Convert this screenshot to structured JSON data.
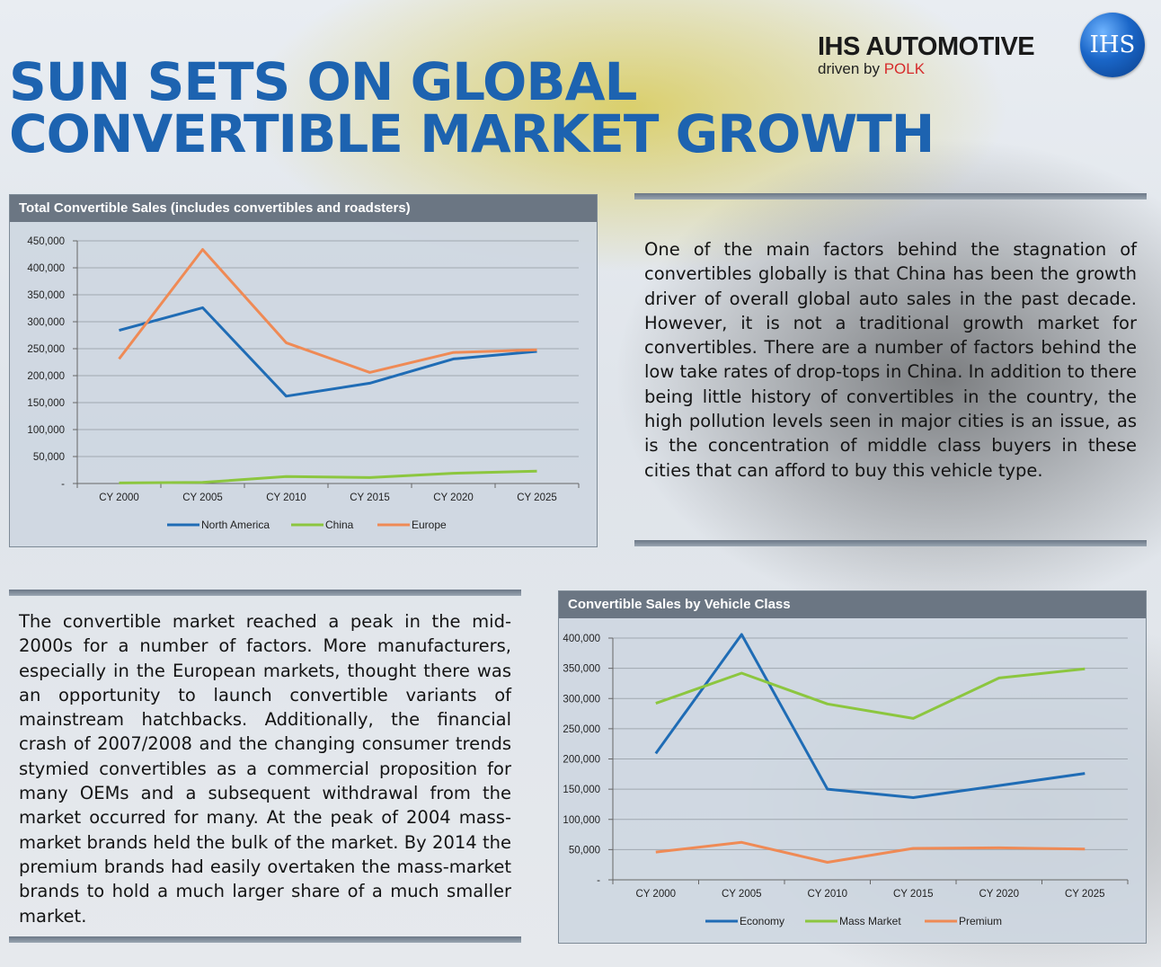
{
  "title": {
    "line1": "SUN SETS ON GLOBAL",
    "line2": "CONVERTIBLE MARKET GROWTH"
  },
  "brand": {
    "name": "IHS AUTOMOTIVE",
    "tagline": "driven by ",
    "tagline_accent": "POLK",
    "logo_text": "IHS"
  },
  "text": {
    "right_paragraph": "One of the main factors behind the stagnation of convertibles globally is that China has been the growth driver of overall global auto sales in the past decade. However, it is not a traditional growth market for convertibles. There are a number of factors behind the low take rates of drop-tops in China. In addition to there being little history of convertibles in the country, the high pollution levels seen in major cities is an issue, as is the concentration of middle class buyers in these cities that can afford to buy this vehicle type.",
    "left_paragraph": "The convertible market reached a peak in the mid-2000s for a number of factors. More manufacturers, especially in the European markets, thought there was an opportunity to launch convertible variants of mainstream hatchbacks. Additionally, the financial crash of 2007/2008 and the changing consumer trends stymied convertibles as a commercial proposition for many OEMs and a subsequent withdrawal from the market occurred for many. At the peak of 2004 mass-market brands held the bulk of the market. By 2014 the premium brands had easily overtaken the mass-market brands to hold a much larger share of a much smaller market."
  },
  "colors": {
    "title": "#1d63b0",
    "blue": "#1f6cb5",
    "green": "#8cc63f",
    "orange": "#ef8a55",
    "panel_header": "#6b7683"
  },
  "chart_data": [
    {
      "type": "line",
      "title": "Total Convertible Sales (includes convertibles and roadsters)",
      "categories": [
        "CY 2000",
        "CY 2005",
        "CY 2010",
        "CY 2015",
        "CY 2020",
        "CY 2025"
      ],
      "ylim": [
        0,
        450000
      ],
      "yticks": [
        0,
        50000,
        100000,
        150000,
        200000,
        250000,
        300000,
        350000,
        400000,
        450000
      ],
      "ytick_labels": [
        "-",
        "50,000",
        "100,000",
        "150,000",
        "200,000",
        "250,000",
        "300,000",
        "350,000",
        "400,000",
        "450,000"
      ],
      "grid": true,
      "legend_position": "bottom",
      "series": [
        {
          "name": "North America",
          "color": "#1f6cb5",
          "values": [
            284000,
            326000,
            162000,
            186000,
            231000,
            245000
          ]
        },
        {
          "name": "China",
          "color": "#8cc63f",
          "values": [
            1000,
            2000,
            13000,
            11000,
            19000,
            23000
          ]
        },
        {
          "name": "Europe",
          "color": "#ef8a55",
          "values": [
            231000,
            434000,
            261000,
            206000,
            243000,
            248000
          ]
        }
      ]
    },
    {
      "type": "line",
      "title": "Convertible Sales by Vehicle Class",
      "categories": [
        "CY 2000",
        "CY 2005",
        "CY 2010",
        "CY 2015",
        "CY 2020",
        "CY 2025"
      ],
      "ylim": [
        0,
        400000
      ],
      "yticks": [
        0,
        50000,
        100000,
        150000,
        200000,
        250000,
        300000,
        350000,
        400000
      ],
      "ytick_labels": [
        "-",
        "50,000",
        "100,000",
        "150,000",
        "200,000",
        "250,000",
        "300,000",
        "350,000",
        "400,000"
      ],
      "grid": true,
      "legend_position": "bottom",
      "series": [
        {
          "name": "Economy",
          "color": "#1f6cb5",
          "values": [
            209000,
            406000,
            150000,
            136000,
            156000,
            176000
          ]
        },
        {
          "name": "Mass Market",
          "color": "#8cc63f",
          "values": [
            292000,
            342000,
            291000,
            267000,
            334000,
            349000
          ]
        },
        {
          "name": "Premium",
          "color": "#ef8a55",
          "values": [
            46000,
            62000,
            29000,
            52000,
            53000,
            51000
          ]
        }
      ]
    }
  ]
}
